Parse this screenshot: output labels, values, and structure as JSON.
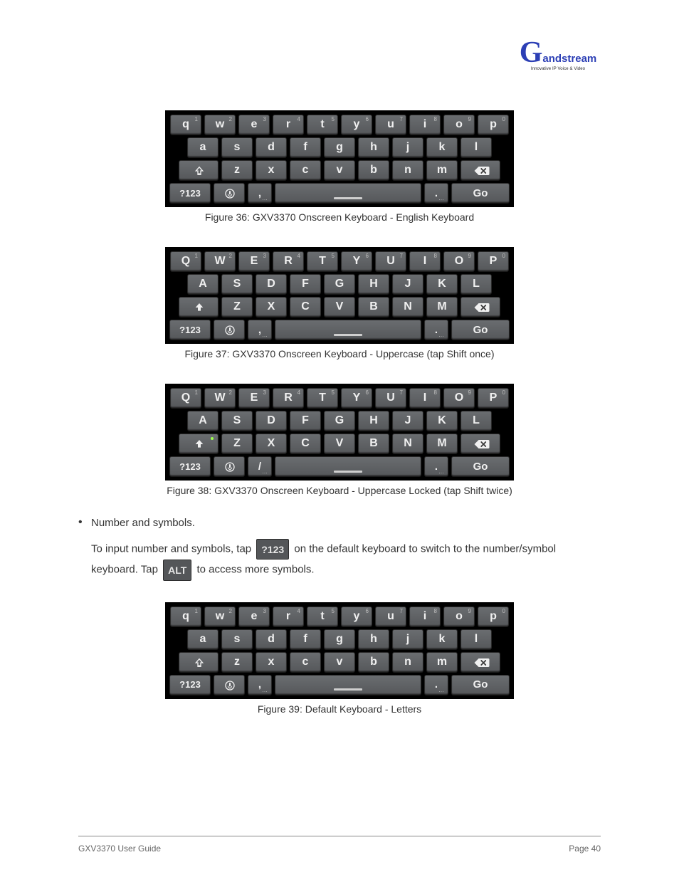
{
  "branding": {
    "glyph": "G",
    "name": "andstream",
    "tagline": "Innovative IP Voice & Video"
  },
  "keyboards": {
    "lower": {
      "row1": [
        {
          "label": "q",
          "sup": "1"
        },
        {
          "label": "w",
          "sup": "2"
        },
        {
          "label": "e",
          "sup": "3"
        },
        {
          "label": "r",
          "sup": "4"
        },
        {
          "label": "t",
          "sup": "5"
        },
        {
          "label": "y",
          "sup": "6"
        },
        {
          "label": "u",
          "sup": "7"
        },
        {
          "label": "i",
          "sup": "8"
        },
        {
          "label": "o",
          "sup": "9"
        },
        {
          "label": "p",
          "sup": "0"
        }
      ],
      "row2": [
        {
          "label": "a"
        },
        {
          "label": "s"
        },
        {
          "label": "d"
        },
        {
          "label": "f"
        },
        {
          "label": "g"
        },
        {
          "label": "h"
        },
        {
          "label": "j"
        },
        {
          "label": "k"
        },
        {
          "label": "l"
        }
      ],
      "row3_letters": [
        {
          "label": "z"
        },
        {
          "label": "x"
        },
        {
          "label": "c"
        },
        {
          "label": "v"
        },
        {
          "label": "b"
        },
        {
          "label": "n"
        },
        {
          "label": "m"
        }
      ],
      "shift_style": "outline",
      "mode_label": "?123",
      "punct_left": ",",
      "punct_right": ".",
      "go_label": "Go"
    },
    "upper_once": {
      "row1": [
        {
          "label": "Q",
          "sup": "1"
        },
        {
          "label": "W",
          "sup": "2"
        },
        {
          "label": "E",
          "sup": "3"
        },
        {
          "label": "R",
          "sup": "4"
        },
        {
          "label": "T",
          "sup": "5"
        },
        {
          "label": "Y",
          "sup": "6"
        },
        {
          "label": "U",
          "sup": "7"
        },
        {
          "label": "I",
          "sup": "8"
        },
        {
          "label": "O",
          "sup": "9"
        },
        {
          "label": "P",
          "sup": "0"
        }
      ],
      "row2": [
        {
          "label": "A"
        },
        {
          "label": "S"
        },
        {
          "label": "D"
        },
        {
          "label": "F"
        },
        {
          "label": "G"
        },
        {
          "label": "H"
        },
        {
          "label": "J"
        },
        {
          "label": "K"
        },
        {
          "label": "L"
        }
      ],
      "row3_letters": [
        {
          "label": "Z"
        },
        {
          "label": "X"
        },
        {
          "label": "C"
        },
        {
          "label": "V"
        },
        {
          "label": "B"
        },
        {
          "label": "N"
        },
        {
          "label": "M"
        }
      ],
      "shift_style": "solid",
      "mode_label": "?123",
      "punct_left": ",",
      "punct_right": ".",
      "go_label": "Go"
    },
    "upper_lock": {
      "row1": [
        {
          "label": "Q",
          "sup": "1"
        },
        {
          "label": "W",
          "sup": "2"
        },
        {
          "label": "E",
          "sup": "3"
        },
        {
          "label": "R",
          "sup": "4"
        },
        {
          "label": "T",
          "sup": "5"
        },
        {
          "label": "Y",
          "sup": "6"
        },
        {
          "label": "U",
          "sup": "7"
        },
        {
          "label": "I",
          "sup": "8"
        },
        {
          "label": "O",
          "sup": "9"
        },
        {
          "label": "P",
          "sup": "0"
        }
      ],
      "row2": [
        {
          "label": "A"
        },
        {
          "label": "S"
        },
        {
          "label": "D"
        },
        {
          "label": "F"
        },
        {
          "label": "G"
        },
        {
          "label": "H"
        },
        {
          "label": "J"
        },
        {
          "label": "K"
        },
        {
          "label": "L"
        }
      ],
      "row3_letters": [
        {
          "label": "Z"
        },
        {
          "label": "X"
        },
        {
          "label": "C"
        },
        {
          "label": "V"
        },
        {
          "label": "B"
        },
        {
          "label": "N"
        },
        {
          "label": "M"
        }
      ],
      "shift_style": "solid",
      "shift_dot": true,
      "mode_label": "?123",
      "punct_left": "/",
      "punct_right": ".",
      "go_label": "Go"
    },
    "lower2": {
      "row1": [
        {
          "label": "q",
          "sup": "1"
        },
        {
          "label": "w",
          "sup": "2"
        },
        {
          "label": "e",
          "sup": "3"
        },
        {
          "label": "r",
          "sup": "4"
        },
        {
          "label": "t",
          "sup": "5"
        },
        {
          "label": "y",
          "sup": "6"
        },
        {
          "label": "u",
          "sup": "7"
        },
        {
          "label": "i",
          "sup": "8"
        },
        {
          "label": "o",
          "sup": "9"
        },
        {
          "label": "p",
          "sup": "0"
        }
      ],
      "row2": [
        {
          "label": "a"
        },
        {
          "label": "s"
        },
        {
          "label": "d"
        },
        {
          "label": "f"
        },
        {
          "label": "g"
        },
        {
          "label": "h"
        },
        {
          "label": "j"
        },
        {
          "label": "k"
        },
        {
          "label": "l"
        }
      ],
      "row3_letters": [
        {
          "label": "z"
        },
        {
          "label": "x"
        },
        {
          "label": "c"
        },
        {
          "label": "v"
        },
        {
          "label": "b"
        },
        {
          "label": "n"
        },
        {
          "label": "m"
        }
      ],
      "shift_style": "outline",
      "mode_label": "?123",
      "punct_left": ",",
      "punct_right": ".",
      "go_label": "Go"
    }
  },
  "captions": {
    "c1": "Figure 36: GXV3370 Onscreen Keyboard - English Keyboard",
    "c2": "Figure 37: GXV3370 Onscreen Keyboard - Uppercase (tap Shift once)",
    "c3": "Figure 38: GXV3370 Onscreen Keyboard - Uppercase Locked (tap Shift twice)"
  },
  "bullet": {
    "para1": "Number and symbols.",
    "para2_a": "To input number and symbols, tap ",
    "key1": "?123",
    "para2_b": " on the default keyboard to switch to the number/symbol keyboard. Tap ",
    "key2": "ALT",
    "para2_c": " to access more symbols."
  },
  "captions2": {
    "c4": "Figure 39: Default Keyboard - Letters"
  },
  "footer": {
    "left": "GXV3370 User Guide",
    "right": "Page 40"
  }
}
